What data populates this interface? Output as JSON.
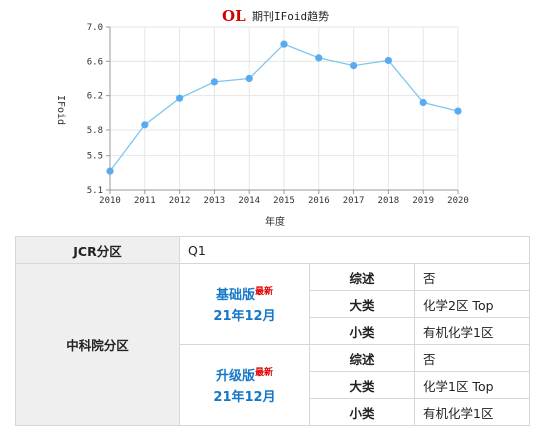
{
  "chart_data": {
    "type": "line",
    "title": "OL",
    "subtitle": "期刊IFoid趋势",
    "xlabel": "年度",
    "ylabel": "IFoid",
    "x": [
      "2010",
      "2011",
      "2012",
      "2013",
      "2014",
      "2015",
      "2016",
      "2017",
      "2018",
      "2019",
      "2020"
    ],
    "y": [
      5.32,
      5.86,
      6.17,
      6.36,
      6.4,
      6.8,
      6.64,
      6.55,
      6.61,
      6.12,
      6.02
    ],
    "yticks": [
      "5.1",
      "5.5",
      "5.8",
      "6.2",
      "6.6",
      "7.0"
    ],
    "ylim": [
      5.1,
      7.0
    ],
    "grid": true,
    "line_color": "#7ec6f0",
    "marker_color": "#5aaaf0"
  },
  "table": {
    "jcr_label": "JCR分区",
    "jcr_value": "Q1",
    "cas_label": "中科院分区",
    "versions": [
      {
        "name": "基础版",
        "badge": "最新",
        "date": "21年12月",
        "rows": [
          {
            "key": "综述",
            "value": "否"
          },
          {
            "key": "大类",
            "value": "化学2区 Top"
          },
          {
            "key": "小类",
            "value": "有机化学1区"
          }
        ]
      },
      {
        "name": "升级版",
        "badge": "最新",
        "date": "21年12月",
        "rows": [
          {
            "key": "综述",
            "value": "否"
          },
          {
            "key": "大类",
            "value": "化学1区 Top"
          },
          {
            "key": "小类",
            "value": "有机化学1区"
          }
        ]
      }
    ]
  }
}
